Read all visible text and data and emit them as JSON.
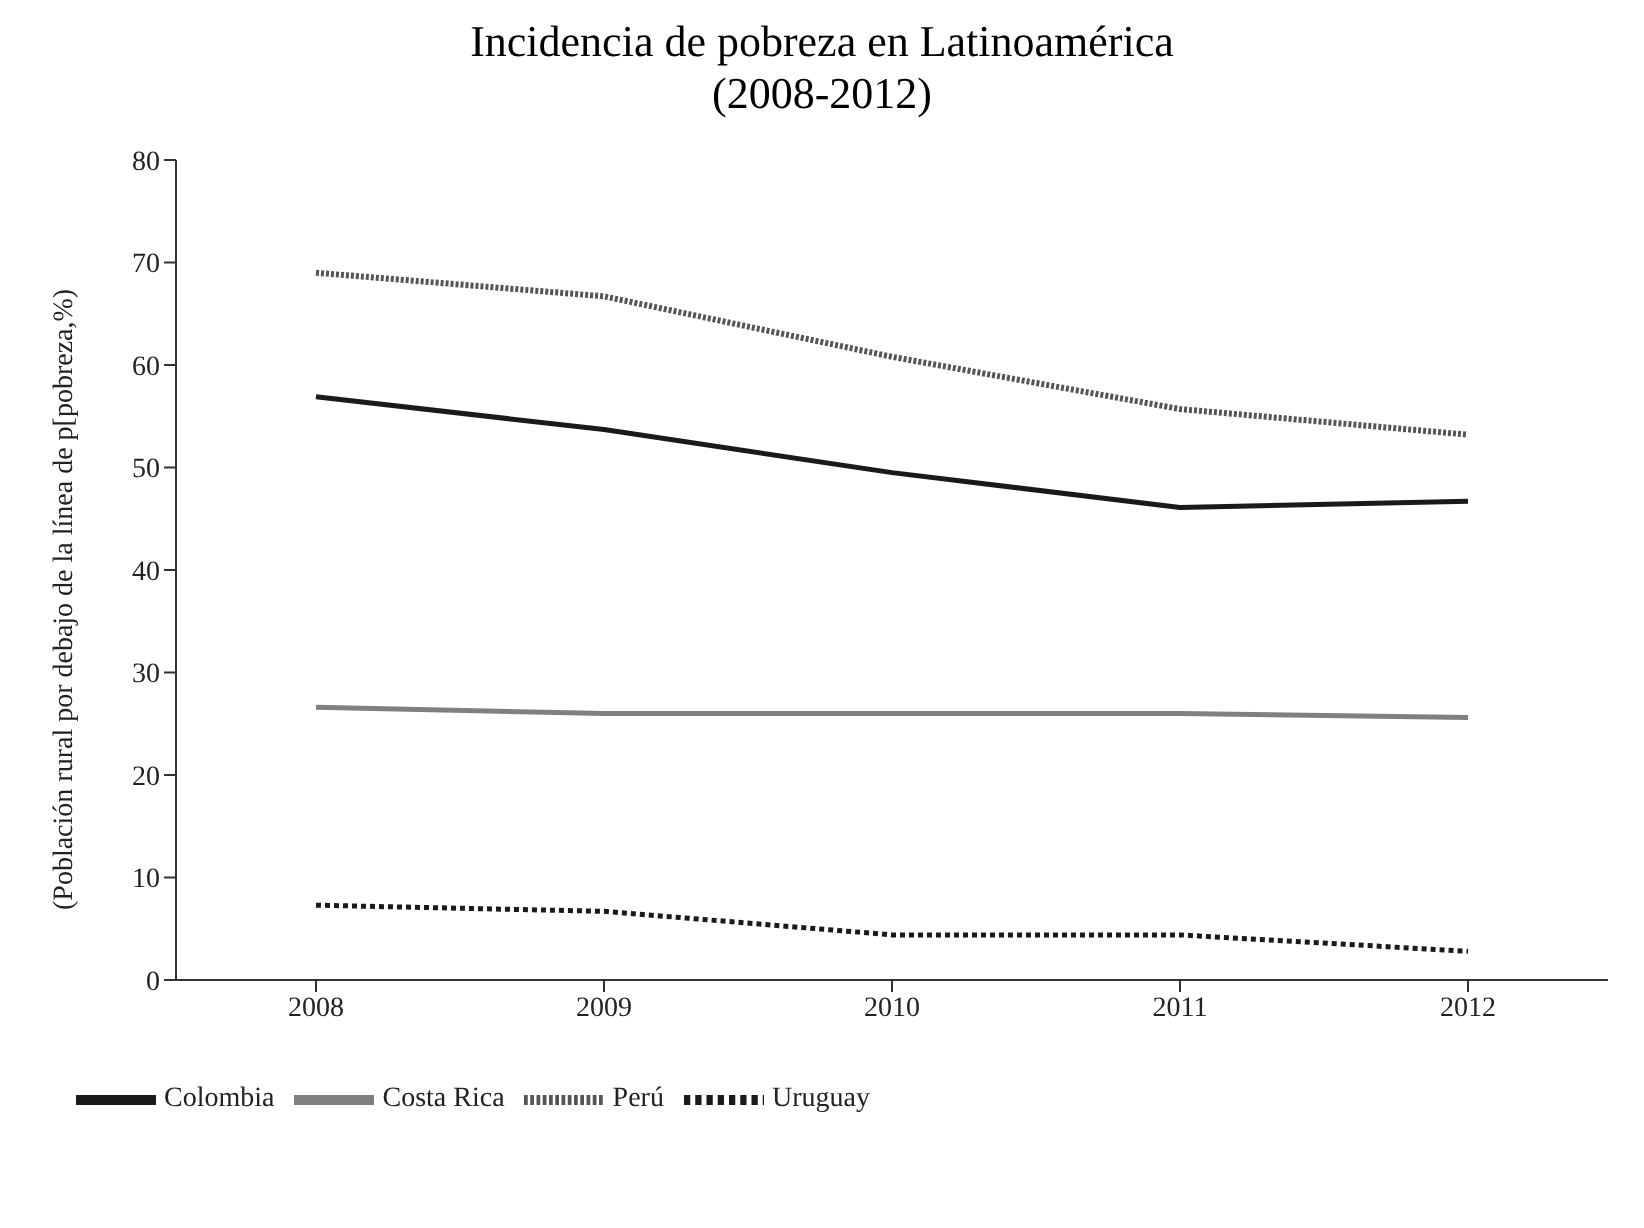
{
  "chart_data": {
    "type": "line",
    "title": "Incidencia de pobreza en Latinoamérica",
    "subtitle": "(2008-2012)",
    "ylabel": "(Población rural por debajo de la línea de p[pobreza,%)",
    "categories": [
      "2008",
      "2009",
      "2010",
      "2011",
      "2012"
    ],
    "series": [
      {
        "name": "Colombia",
        "color": "#1a1a1a",
        "line_style": "solid",
        "values": [
          56.9,
          53.7,
          49.5,
          46.1,
          46.7
        ]
      },
      {
        "name": "Costa Rica",
        "color": "#808080",
        "line_style": "solid",
        "values": [
          26.6,
          26.0,
          26.0,
          26.0,
          25.6
        ]
      },
      {
        "name": "Perú",
        "color": "#555555",
        "line_style": "dotted",
        "values": [
          69.0,
          66.7,
          60.8,
          55.7,
          53.2
        ]
      },
      {
        "name": "Uruguay",
        "color": "#1a1a1a",
        "line_style": "dashed",
        "values": [
          7.3,
          6.7,
          4.4,
          4.4,
          2.8
        ]
      }
    ],
    "ylim": [
      0,
      80
    ],
    "yticks": [
      0,
      10,
      20,
      30,
      40,
      50,
      60,
      70,
      80
    ],
    "grid": false,
    "legend": "bottom left",
    "marker": "none"
  }
}
